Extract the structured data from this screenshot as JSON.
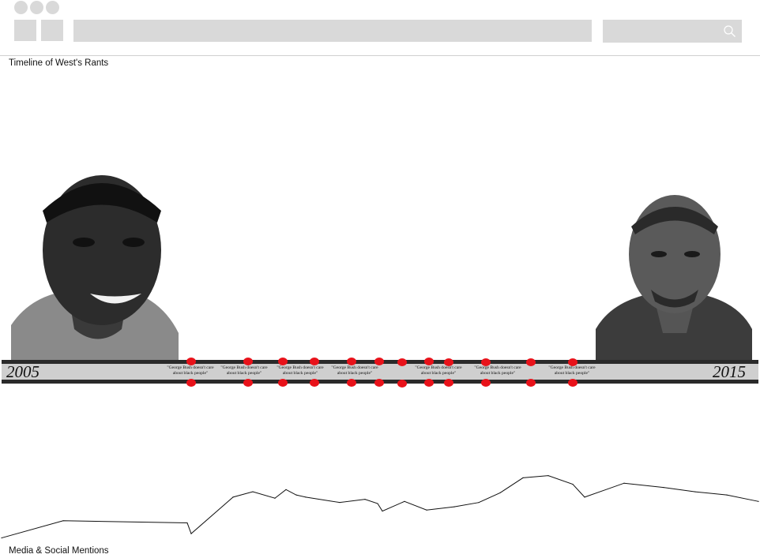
{
  "page": {
    "title": "Timeline of West's Rants",
    "chart_label": "Media & Social Mentions"
  },
  "timeline": {
    "start_year": "2005",
    "end_year": "2015",
    "event_color": "#e8121a",
    "quotes": [
      "\"George Bush doesn't care about black people\"",
      "\"George Bush doesn't care about black people\"",
      "\"George Bush doesn't care about black people\"",
      "\"George Bush doesn't care about black people\"",
      "\"George Bush doesn't care about black people\"",
      "\"George Bush doesn't care about black people\"",
      "\"George Bush doesn't care about black people\""
    ]
  },
  "icons": {
    "search": "search-icon"
  },
  "chart_data": {
    "type": "line",
    "title": "",
    "xlabel": "",
    "ylabel": "",
    "grid": false,
    "x": [
      0,
      1,
      2,
      3,
      4,
      5,
      6,
      7,
      8,
      9,
      10,
      11,
      12,
      13,
      14,
      15,
      16,
      17,
      18,
      19,
      20,
      21,
      22,
      23,
      24,
      25,
      26,
      27
    ],
    "series": [
      {
        "values": [
          4,
          20,
          18,
          8,
          42,
          47,
          41,
          49,
          44,
          42,
          37,
          40,
          36,
          29,
          38,
          30,
          33,
          37,
          46,
          60,
          62,
          54,
          42,
          55,
          51,
          47,
          44,
          38
        ]
      }
    ],
    "ylim": [
      0,
      125
    ]
  }
}
